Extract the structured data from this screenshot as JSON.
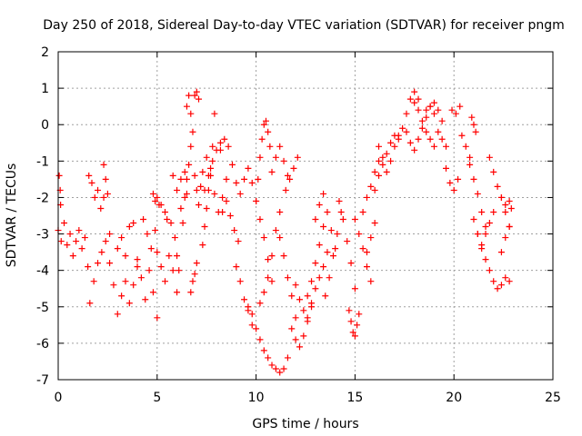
{
  "chart_data": {
    "type": "scatter",
    "title": "Day 250 of 2018, Sidereal Day-to-day VTEC variation (SDTVAR) for receiver pngm",
    "xlabel": "GPS time / hours",
    "ylabel": "SDTVAR / TECUs",
    "xlim": [
      0,
      25
    ],
    "ylim": [
      -7,
      2
    ],
    "xticks": [
      0,
      5,
      10,
      15,
      20,
      25
    ],
    "yticks": [
      -7,
      -6,
      -5,
      -4,
      -3,
      -2,
      -1,
      0,
      1,
      2
    ],
    "grid": true,
    "marker": "+",
    "color": "#ff0000",
    "series": [
      {
        "name": "SDTVAR",
        "segments": [
          {
            "x": [
              0.0,
              0.15,
              0.3,
              0.45,
              0.6,
              0.75,
              0.9,
              1.05,
              1.2,
              1.35,
              1.5
            ],
            "y": [
              -2.9,
              -3.2,
              -2.7,
              -3.3,
              -3.0,
              -3.6,
              -3.2,
              -2.9,
              -3.4,
              -3.1,
              -3.9
            ]
          },
          {
            "x": [
              0.05,
              0.1,
              0.12
            ],
            "y": [
              -1.4,
              -1.8,
              -2.2
            ]
          },
          {
            "x": [
              1.55,
              1.7,
              1.85,
              2.0,
              2.15,
              2.3
            ],
            "y": [
              -1.4,
              -1.6,
              -2.0,
              -1.8,
              -2.3,
              -2.0
            ]
          },
          {
            "x": [
              1.6,
              1.8,
              2.0,
              2.2,
              2.4,
              2.6
            ],
            "y": [
              -4.9,
              -4.3,
              -3.8,
              -3.5,
              -3.2,
              -3.0
            ]
          },
          {
            "x": [
              2.3,
              2.4,
              2.5
            ],
            "y": [
              -1.1,
              -1.5,
              -1.9
            ]
          },
          {
            "x": [
              2.6,
              2.8,
              3.0,
              3.2,
              3.4,
              3.6,
              3.8,
              4.0
            ],
            "y": [
              -3.8,
              -4.4,
              -5.2,
              -4.7,
              -4.3,
              -4.9,
              -4.4,
              -3.9
            ]
          },
          {
            "x": [
              3.0,
              3.2,
              3.4,
              3.6,
              3.8
            ],
            "y": [
              -3.4,
              -3.1,
              -3.6,
              -2.8,
              -2.7
            ]
          },
          {
            "x": [
              4.0,
              4.2,
              4.4,
              4.6,
              4.8,
              5.0
            ],
            "y": [
              -3.7,
              -4.2,
              -4.8,
              -4.0,
              -4.6,
              -5.3
            ]
          },
          {
            "x": [
              4.3,
              4.5,
              4.7,
              4.9
            ],
            "y": [
              -2.6,
              -3.0,
              -3.4,
              -2.9
            ]
          },
          {
            "x": [
              4.8,
              4.9,
              5.0,
              5.1
            ],
            "y": [
              -1.9,
              -2.1,
              -2.0,
              -2.2
            ]
          },
          {
            "x": [
              5.0,
              5.2,
              5.4,
              5.6,
              5.8,
              6.0
            ],
            "y": [
              -3.5,
              -3.9,
              -4.3,
              -3.6,
              -4.0,
              -4.6
            ]
          },
          {
            "x": [
              5.2,
              5.4,
              5.5
            ],
            "y": [
              -2.2,
              -2.4,
              -2.6
            ]
          },
          {
            "x": [
              5.7,
              5.9,
              6.0,
              6.1
            ],
            "y": [
              -2.7,
              -3.1,
              -3.6,
              -4.0
            ]
          },
          {
            "x": [
              5.8,
              6.0,
              6.2,
              6.4,
              6.5
            ],
            "y": [
              -1.4,
              -1.8,
              -1.5,
              -1.3,
              -1.9
            ]
          },
          {
            "x": [
              6.2,
              6.3,
              6.4,
              6.5,
              6.6,
              6.7,
              6.8
            ],
            "y": [
              -2.3,
              -2.7,
              -2.0,
              -1.5,
              -1.1,
              -0.6,
              -0.2
            ]
          },
          {
            "x": [
              6.5,
              6.6,
              6.7
            ],
            "y": [
              0.5,
              0.8,
              0.3
            ]
          },
          {
            "x": [
              6.7,
              6.8,
              6.9,
              7.0
            ],
            "y": [
              -4.6,
              -4.3,
              -4.1,
              -3.8
            ]
          },
          {
            "x": [
              6.9,
              7.0,
              7.1
            ],
            "y": [
              0.8,
              0.9,
              0.7
            ]
          },
          {
            "x": [
              6.9,
              7.0,
              7.1,
              7.2,
              7.3
            ],
            "y": [
              -1.4,
              -1.8,
              -2.2,
              -1.7,
              -1.3
            ]
          },
          {
            "x": [
              7.3,
              7.4,
              7.5,
              7.6,
              7.7,
              7.8,
              7.9
            ],
            "y": [
              -3.3,
              -2.8,
              -2.3,
              -1.8,
              -1.2,
              -0.6,
              0.3
            ]
          },
          {
            "x": [
              7.5,
              7.7,
              7.9,
              8.1,
              8.3,
              8.5
            ],
            "y": [
              -0.9,
              -1.4,
              -1.9,
              -2.4,
              -2.0,
              -1.5
            ]
          },
          {
            "x": [
              7.4,
              7.6,
              7.8,
              8.0,
              8.2
            ],
            "y": [
              -1.8,
              -1.4,
              -1.0,
              -0.7,
              -0.5
            ]
          },
          {
            "x": [
              8.2,
              8.4,
              8.6,
              8.8,
              9.0
            ],
            "y": [
              -0.7,
              -0.4,
              -0.6,
              -1.1,
              -1.6
            ]
          },
          {
            "x": [
              8.3,
              8.5,
              8.7,
              8.9,
              9.1
            ],
            "y": [
              -2.4,
              -2.1,
              -2.5,
              -2.9,
              -3.2
            ]
          },
          {
            "x": [
              9.0,
              9.2,
              9.4,
              9.6,
              9.8
            ],
            "y": [
              -3.9,
              -4.3,
              -4.8,
              -5.1,
              -5.5
            ]
          },
          {
            "x": [
              9.2,
              9.4,
              9.6,
              9.8,
              10.0,
              10.2,
              10.4,
              10.6,
              10.8
            ],
            "y": [
              -1.9,
              -1.5,
              -1.2,
              -1.6,
              -2.1,
              -2.6,
              -3.1,
              -3.7,
              -4.3
            ]
          },
          {
            "x": [
              9.6,
              9.8,
              10.0,
              10.2,
              10.4,
              10.6,
              10.8,
              11.0,
              11.2,
              11.4,
              11.6
            ],
            "y": [
              -5.0,
              -5.2,
              -5.6,
              -5.9,
              -6.2,
              -6.4,
              -6.6,
              -6.7,
              -6.8,
              -6.7,
              -6.4
            ]
          },
          {
            "x": [
              10.0,
              10.1,
              10.2,
              10.3,
              10.4,
              10.5,
              10.6,
              10.7
            ],
            "y": [
              -2.1,
              -1.5,
              -0.9,
              -0.4,
              0.0,
              0.1,
              -0.2,
              -0.6
            ]
          },
          {
            "x": [
              10.2,
              10.4,
              10.6,
              10.8,
              11.0,
              11.2
            ],
            "y": [
              -4.9,
              -4.6,
              -4.2,
              -3.6,
              -2.9,
              -2.4
            ]
          },
          {
            "x": [
              10.8,
              11.0,
              11.2,
              11.4,
              11.6
            ],
            "y": [
              -1.3,
              -0.9,
              -0.6,
              -1.0,
              -1.4
            ]
          },
          {
            "x": [
              11.2,
              11.4,
              11.6,
              11.8,
              12.0
            ],
            "y": [
              -3.1,
              -3.6,
              -4.2,
              -4.7,
              -5.3
            ]
          },
          {
            "x": [
              11.5,
              11.7,
              11.9,
              12.1
            ],
            "y": [
              -1.8,
              -1.5,
              -1.2,
              -0.9
            ]
          },
          {
            "x": [
              11.8,
              12.0,
              12.2,
              12.4,
              12.6,
              12.8
            ],
            "y": [
              -5.6,
              -5.9,
              -6.1,
              -5.8,
              -5.4,
              -5.0
            ]
          },
          {
            "x": [
              12.0,
              12.2,
              12.4,
              12.6,
              12.8,
              13.0,
              13.2,
              13.4
            ],
            "y": [
              -4.4,
              -4.8,
              -5.1,
              -4.7,
              -4.3,
              -3.8,
              -3.3,
              -2.8
            ]
          },
          {
            "x": [
              12.6,
              12.8,
              13.0,
              13.2,
              13.4,
              13.6
            ],
            "y": [
              -5.3,
              -4.9,
              -4.5,
              -4.2,
              -3.9,
              -3.5
            ]
          },
          {
            "x": [
              13.0,
              13.2,
              13.4,
              13.6,
              13.8,
              14.0
            ],
            "y": [
              -2.6,
              -2.2,
              -1.9,
              -2.4,
              -2.9,
              -3.4
            ]
          },
          {
            "x": [
              13.5,
              13.7,
              13.9,
              14.1,
              14.3
            ],
            "y": [
              -4.7,
              -4.2,
              -3.6,
              -3.0,
              -2.4
            ]
          },
          {
            "x": [
              14.2,
              14.4,
              14.6,
              14.8,
              15.0
            ],
            "y": [
              -2.1,
              -2.6,
              -3.2,
              -3.8,
              -4.5
            ]
          },
          {
            "x": [
              14.7,
              14.8,
              14.9,
              15.0,
              15.1,
              15.2
            ],
            "y": [
              -5.1,
              -5.4,
              -5.7,
              -5.8,
              -5.5,
              -5.2
            ]
          },
          {
            "x": [
              15.0,
              15.2,
              15.4,
              15.6,
              15.8
            ],
            "y": [
              -2.6,
              -3.0,
              -3.4,
              -3.9,
              -4.3
            ]
          },
          {
            "x": [
              15.4,
              15.6,
              15.8,
              16.0,
              16.2
            ],
            "y": [
              -2.4,
              -2.0,
              -1.7,
              -1.3,
              -1.0
            ]
          },
          {
            "x": [
              15.6,
              15.8,
              16.0
            ],
            "y": [
              -3.5,
              -3.1,
              -2.7
            ]
          },
          {
            "x": [
              16.0,
              16.2,
              16.4,
              16.6,
              16.8,
              17.0
            ],
            "y": [
              -1.8,
              -1.4,
              -1.1,
              -0.8,
              -0.5,
              -0.3
            ]
          },
          {
            "x": [
              16.2,
              16.4,
              16.6,
              16.8,
              17.0,
              17.2
            ],
            "y": [
              -0.6,
              -0.9,
              -1.3,
              -1.0,
              -0.6,
              -0.3
            ]
          },
          {
            "x": [
              17.2,
              17.4,
              17.6,
              17.8,
              18.0,
              18.2
            ],
            "y": [
              -0.4,
              -0.1,
              0.3,
              0.7,
              0.9,
              0.7
            ]
          },
          {
            "x": [
              17.6,
              17.8,
              18.0,
              18.2,
              18.4,
              18.6,
              18.8,
              19.0
            ],
            "y": [
              -0.2,
              -0.5,
              -0.7,
              -0.4,
              -0.1,
              0.2,
              0.5,
              0.3
            ]
          },
          {
            "x": [
              18.0,
              18.2,
              18.4,
              18.6,
              18.8,
              19.0
            ],
            "y": [
              0.6,
              0.4,
              0.1,
              -0.2,
              -0.4,
              -0.6
            ]
          },
          {
            "x": [
              18.6,
              18.8,
              19.0,
              19.2,
              19.4
            ],
            "y": [
              0.4,
              0.5,
              0.6,
              0.4,
              0.1
            ]
          },
          {
            "x": [
              19.2,
              19.4,
              19.6
            ],
            "y": [
              -0.2,
              -0.4,
              -0.6
            ]
          },
          {
            "x": [
              19.6,
              19.8,
              20.0,
              20.2
            ],
            "y": [
              -1.2,
              -1.6,
              -1.8,
              -1.5
            ]
          },
          {
            "x": [
              19.9,
              20.1,
              20.3
            ],
            "y": [
              0.4,
              0.3,
              0.5
            ]
          },
          {
            "x": [
              20.4,
              20.6,
              20.8
            ],
            "y": [
              -0.3,
              -0.6,
              -0.9
            ]
          },
          {
            "x": [
              20.9,
              21.0,
              21.1
            ],
            "y": [
              0.2,
              0.0,
              -0.2
            ]
          },
          {
            "x": [
              20.8,
              21.0,
              21.2,
              21.4,
              21.6
            ],
            "y": [
              -1.1,
              -1.5,
              -1.9,
              -2.4,
              -2.8
            ]
          },
          {
            "x": [
              21.0,
              21.2,
              21.4,
              21.6,
              21.8,
              22.0,
              22.2,
              22.4,
              22.6,
              22.8
            ],
            "y": [
              -2.6,
              -3.0,
              -3.4,
              -3.7,
              -4.0,
              -4.3,
              -4.5,
              -4.4,
              -4.2,
              -4.3
            ]
          },
          {
            "x": [
              21.2,
              21.4,
              21.6,
              21.8,
              22.0
            ],
            "y": [
              -3.0,
              -3.3,
              -3.0,
              -2.7,
              -2.4
            ]
          },
          {
            "x": [
              21.8,
              22.0,
              22.2,
              22.4,
              22.6,
              22.8
            ],
            "y": [
              -0.9,
              -1.3,
              -1.7,
              -2.0,
              -2.4,
              -2.8
            ]
          },
          {
            "x": [
              22.4,
              22.6,
              22.8,
              22.9
            ],
            "y": [
              -2.0,
              -2.2,
              -2.1,
              -2.3
            ]
          },
          {
            "x": [
              22.4,
              22.6,
              22.8
            ],
            "y": [
              -3.5,
              -3.1,
              -2.8
            ]
          }
        ]
      }
    ]
  }
}
